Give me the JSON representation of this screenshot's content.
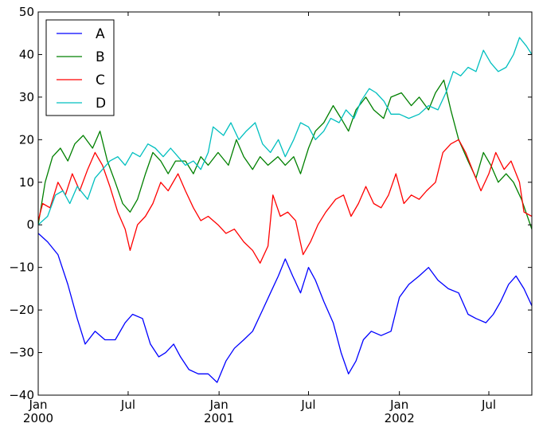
{
  "chart_data": {
    "type": "line",
    "title": "",
    "xlabel": "",
    "ylabel": "",
    "xlim": [
      "2000-01-01",
      "2002-09-26"
    ],
    "ylim": [
      -40,
      50
    ],
    "grid": false,
    "legend_position": "top-left",
    "yticks": [
      -40,
      -30,
      -20,
      -10,
      0,
      10,
      20,
      30,
      40,
      50
    ],
    "ytick_labels": [
      "−40",
      "−30",
      "−20",
      "−10",
      "0",
      "10",
      "20",
      "30",
      "40",
      "50"
    ],
    "xticks": [
      {
        "date": "2000-01-01",
        "label": "Jan",
        "sublabel": "2000"
      },
      {
        "date": "2000-07-01",
        "label": "Jul",
        "sublabel": ""
      },
      {
        "date": "2001-01-01",
        "label": "Jan",
        "sublabel": "2001"
      },
      {
        "date": "2001-07-01",
        "label": "Jul",
        "sublabel": ""
      },
      {
        "date": "2002-01-01",
        "label": "Jan",
        "sublabel": "2002"
      },
      {
        "date": "2002-07-01",
        "label": "Jul",
        "sublabel": ""
      }
    ],
    "series": [
      {
        "name": "A",
        "color": "#0000ff",
        "points": [
          [
            "2000-01-01",
            -2
          ],
          [
            "2000-01-20",
            -4
          ],
          [
            "2000-02-10",
            -7
          ],
          [
            "2000-03-01",
            -14
          ],
          [
            "2000-03-20",
            -22
          ],
          [
            "2000-04-05",
            -28
          ],
          [
            "2000-04-25",
            -25
          ],
          [
            "2000-05-15",
            -27
          ],
          [
            "2000-06-05",
            -27
          ],
          [
            "2000-06-25",
            -23
          ],
          [
            "2000-07-10",
            -21
          ],
          [
            "2000-07-30",
            -22
          ],
          [
            "2000-08-15",
            -28
          ],
          [
            "2000-09-01",
            -31
          ],
          [
            "2000-09-15",
            -30
          ],
          [
            "2000-10-01",
            -28
          ],
          [
            "2000-10-15",
            -31
          ],
          [
            "2000-11-01",
            -34
          ],
          [
            "2000-11-20",
            -35
          ],
          [
            "2000-12-10",
            -35
          ],
          [
            "2000-12-28",
            -37
          ],
          [
            "2001-01-15",
            -32
          ],
          [
            "2001-02-01",
            -29
          ],
          [
            "2001-02-20",
            -27
          ],
          [
            "2001-03-10",
            -25
          ],
          [
            "2001-03-30",
            -20
          ],
          [
            "2001-04-15",
            -16
          ],
          [
            "2001-05-01",
            -12
          ],
          [
            "2001-05-15",
            -8
          ],
          [
            "2001-05-30",
            -12
          ],
          [
            "2001-06-15",
            -16
          ],
          [
            "2001-07-01",
            -10
          ],
          [
            "2001-07-15",
            -13
          ],
          [
            "2001-08-01",
            -18
          ],
          [
            "2001-08-20",
            -23
          ],
          [
            "2001-09-05",
            -30
          ],
          [
            "2001-09-20",
            -35
          ],
          [
            "2001-10-05",
            -32
          ],
          [
            "2001-10-20",
            -27
          ],
          [
            "2001-11-05",
            -25
          ],
          [
            "2001-11-25",
            -26
          ],
          [
            "2001-12-15",
            -25
          ],
          [
            "2002-01-01",
            -17
          ],
          [
            "2002-01-20",
            -14
          ],
          [
            "2002-02-10",
            -12
          ],
          [
            "2002-03-01",
            -10
          ],
          [
            "2002-03-20",
            -13
          ],
          [
            "2002-04-10",
            -15
          ],
          [
            "2002-05-01",
            -16
          ],
          [
            "2002-05-20",
            -21
          ],
          [
            "2002-06-05",
            -22
          ],
          [
            "2002-06-25",
            -23
          ],
          [
            "2002-07-10",
            -21
          ],
          [
            "2002-07-25",
            -18
          ],
          [
            "2002-08-10",
            -14
          ],
          [
            "2002-08-25",
            -12
          ],
          [
            "2002-09-10",
            -15
          ],
          [
            "2002-09-26",
            -19
          ]
        ]
      },
      {
        "name": "B",
        "color": "#008000",
        "points": [
          [
            "2000-01-01",
            0
          ],
          [
            "2000-01-15",
            10
          ],
          [
            "2000-01-30",
            16
          ],
          [
            "2000-02-15",
            18
          ],
          [
            "2000-03-01",
            15
          ],
          [
            "2000-03-15",
            19
          ],
          [
            "2000-04-01",
            21
          ],
          [
            "2000-04-20",
            18
          ],
          [
            "2000-05-05",
            22
          ],
          [
            "2000-05-20",
            15
          ],
          [
            "2000-06-05",
            10
          ],
          [
            "2000-06-20",
            5
          ],
          [
            "2000-07-05",
            3
          ],
          [
            "2000-07-20",
            6
          ],
          [
            "2000-08-05",
            12
          ],
          [
            "2000-08-20",
            17
          ],
          [
            "2000-09-05",
            15
          ],
          [
            "2000-09-20",
            12
          ],
          [
            "2000-10-05",
            15
          ],
          [
            "2000-10-25",
            15
          ],
          [
            "2000-11-10",
            12
          ],
          [
            "2000-11-25",
            16
          ],
          [
            "2000-12-10",
            14
          ],
          [
            "2000-12-30",
            17
          ],
          [
            "2001-01-20",
            14
          ],
          [
            "2001-02-05",
            20
          ],
          [
            "2001-02-20",
            16
          ],
          [
            "2001-03-10",
            13
          ],
          [
            "2001-03-25",
            16
          ],
          [
            "2001-04-10",
            14
          ],
          [
            "2001-04-30",
            16
          ],
          [
            "2001-05-15",
            14
          ],
          [
            "2001-06-01",
            16
          ],
          [
            "2001-06-15",
            12
          ],
          [
            "2001-07-01",
            18
          ],
          [
            "2001-07-15",
            22
          ],
          [
            "2001-08-01",
            24
          ],
          [
            "2001-08-20",
            28
          ],
          [
            "2001-09-05",
            25
          ],
          [
            "2001-09-20",
            22
          ],
          [
            "2001-10-05",
            27
          ],
          [
            "2001-10-25",
            30
          ],
          [
            "2001-11-10",
            27
          ],
          [
            "2001-11-30",
            25
          ],
          [
            "2001-12-15",
            30
          ],
          [
            "2002-01-05",
            31
          ],
          [
            "2002-01-25",
            28
          ],
          [
            "2002-02-10",
            30
          ],
          [
            "2002-03-01",
            27
          ],
          [
            "2002-03-15",
            31
          ],
          [
            "2002-04-01",
            34
          ],
          [
            "2002-04-15",
            27
          ],
          [
            "2002-05-01",
            20
          ],
          [
            "2002-05-20",
            15
          ],
          [
            "2002-06-05",
            11
          ],
          [
            "2002-06-20",
            17
          ],
          [
            "2002-07-05",
            14
          ],
          [
            "2002-07-20",
            10
          ],
          [
            "2002-08-05",
            12
          ],
          [
            "2002-08-20",
            10
          ],
          [
            "2002-09-05",
            6
          ],
          [
            "2002-09-26",
            -1
          ]
        ]
      },
      {
        "name": "C",
        "color": "#ff0000",
        "points": [
          [
            "2000-01-01",
            1
          ],
          [
            "2000-01-10",
            5
          ],
          [
            "2000-01-25",
            4
          ],
          [
            "2000-02-10",
            10
          ],
          [
            "2000-02-25",
            7
          ],
          [
            "2000-03-10",
            12
          ],
          [
            "2000-03-25",
            8
          ],
          [
            "2000-04-10",
            13
          ],
          [
            "2000-04-25",
            17
          ],
          [
            "2000-05-10",
            14
          ],
          [
            "2000-05-25",
            9
          ],
          [
            "2000-06-10",
            3
          ],
          [
            "2000-06-25",
            -1
          ],
          [
            "2000-07-05",
            -6
          ],
          [
            "2000-07-20",
            0
          ],
          [
            "2000-08-05",
            2
          ],
          [
            "2000-08-20",
            5
          ],
          [
            "2000-09-05",
            10
          ],
          [
            "2000-09-20",
            8
          ],
          [
            "2000-10-10",
            12
          ],
          [
            "2000-10-25",
            8
          ],
          [
            "2000-11-10",
            4
          ],
          [
            "2000-11-25",
            1
          ],
          [
            "2000-12-10",
            2
          ],
          [
            "2000-12-30",
            0
          ],
          [
            "2001-01-15",
            -2
          ],
          [
            "2001-02-01",
            -1
          ],
          [
            "2001-02-20",
            -4
          ],
          [
            "2001-03-10",
            -6
          ],
          [
            "2001-03-25",
            -9
          ],
          [
            "2001-04-10",
            -5
          ],
          [
            "2001-04-20",
            7
          ],
          [
            "2001-05-05",
            2
          ],
          [
            "2001-05-20",
            3
          ],
          [
            "2001-06-05",
            1
          ],
          [
            "2001-06-20",
            -7
          ],
          [
            "2001-07-05",
            -4
          ],
          [
            "2001-07-20",
            0
          ],
          [
            "2001-08-05",
            3
          ],
          [
            "2001-08-25",
            6
          ],
          [
            "2001-09-10",
            7
          ],
          [
            "2001-09-25",
            2
          ],
          [
            "2001-10-10",
            5
          ],
          [
            "2001-10-25",
            9
          ],
          [
            "2001-11-10",
            5
          ],
          [
            "2001-11-25",
            4
          ],
          [
            "2001-12-10",
            7
          ],
          [
            "2001-12-25",
            12
          ],
          [
            "2002-01-10",
            5
          ],
          [
            "2002-01-25",
            7
          ],
          [
            "2002-02-10",
            6
          ],
          [
            "2002-02-25",
            8
          ],
          [
            "2002-03-15",
            10
          ],
          [
            "2002-03-30",
            17
          ],
          [
            "2002-04-15",
            19
          ],
          [
            "2002-05-01",
            20
          ],
          [
            "2002-05-15",
            17
          ],
          [
            "2002-06-01",
            12
          ],
          [
            "2002-06-15",
            8
          ],
          [
            "2002-07-01",
            12
          ],
          [
            "2002-07-15",
            17
          ],
          [
            "2002-08-01",
            13
          ],
          [
            "2002-08-15",
            15
          ],
          [
            "2002-09-01",
            10
          ],
          [
            "2002-09-10",
            3
          ],
          [
            "2002-09-26",
            2
          ]
        ]
      },
      {
        "name": "D",
        "color": "#00bfbf",
        "points": [
          [
            "2000-01-01",
            0
          ],
          [
            "2000-01-20",
            2
          ],
          [
            "2000-02-05",
            7
          ],
          [
            "2000-02-20",
            8
          ],
          [
            "2000-03-05",
            5
          ],
          [
            "2000-03-20",
            9
          ],
          [
            "2000-04-10",
            6
          ],
          [
            "2000-04-25",
            11
          ],
          [
            "2000-05-10",
            13
          ],
          [
            "2000-05-25",
            15
          ],
          [
            "2000-06-10",
            16
          ],
          [
            "2000-06-25",
            14
          ],
          [
            "2000-07-10",
            17
          ],
          [
            "2000-07-25",
            16
          ],
          [
            "2000-08-10",
            19
          ],
          [
            "2000-08-25",
            18
          ],
          [
            "2000-09-10",
            16
          ],
          [
            "2000-09-25",
            18
          ],
          [
            "2000-10-10",
            16
          ],
          [
            "2000-10-25",
            14
          ],
          [
            "2000-11-10",
            15
          ],
          [
            "2000-11-25",
            13
          ],
          [
            "2000-12-10",
            17
          ],
          [
            "2000-12-20",
            23
          ],
          [
            "2001-01-10",
            21
          ],
          [
            "2001-01-25",
            24
          ],
          [
            "2001-02-10",
            20
          ],
          [
            "2001-02-25",
            22
          ],
          [
            "2001-03-15",
            24
          ],
          [
            "2001-03-30",
            19
          ],
          [
            "2001-04-15",
            17
          ],
          [
            "2001-05-01",
            20
          ],
          [
            "2001-05-15",
            16
          ],
          [
            "2001-06-01",
            20
          ],
          [
            "2001-06-15",
            24
          ],
          [
            "2001-07-01",
            23
          ],
          [
            "2001-07-15",
            20
          ],
          [
            "2001-08-01",
            22
          ],
          [
            "2001-08-15",
            25
          ],
          [
            "2001-09-01",
            24
          ],
          [
            "2001-09-15",
            27
          ],
          [
            "2001-10-01",
            25
          ],
          [
            "2001-10-15",
            29
          ],
          [
            "2001-11-01",
            32
          ],
          [
            "2001-11-15",
            31
          ],
          [
            "2001-12-01",
            29
          ],
          [
            "2001-12-15",
            26
          ],
          [
            "2002-01-01",
            26
          ],
          [
            "2002-01-20",
            25
          ],
          [
            "2002-02-10",
            26
          ],
          [
            "2002-03-01",
            28
          ],
          [
            "2002-03-20",
            27
          ],
          [
            "2002-04-05",
            31
          ],
          [
            "2002-04-20",
            36
          ],
          [
            "2002-05-05",
            35
          ],
          [
            "2002-05-20",
            37
          ],
          [
            "2002-06-05",
            36
          ],
          [
            "2002-06-20",
            41
          ],
          [
            "2002-07-05",
            38
          ],
          [
            "2002-07-20",
            36
          ],
          [
            "2002-08-05",
            37
          ],
          [
            "2002-08-20",
            40
          ],
          [
            "2002-09-01",
            44
          ],
          [
            "2002-09-15",
            42
          ],
          [
            "2002-09-26",
            40
          ]
        ]
      }
    ]
  }
}
